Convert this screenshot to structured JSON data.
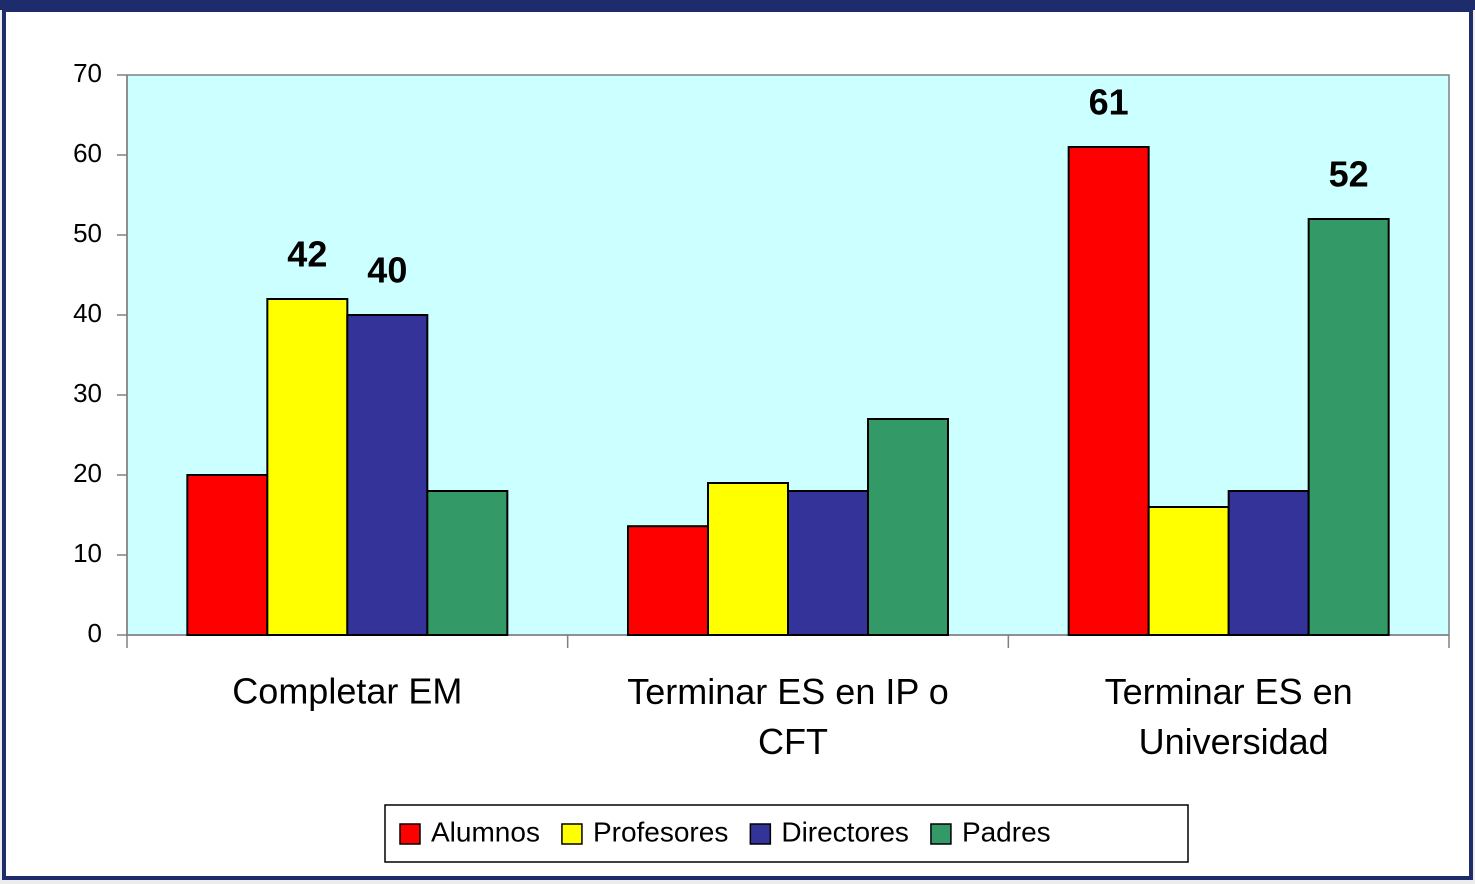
{
  "chart_data": {
    "type": "bar",
    "categories": [
      "Completar EM",
      "Terminar ES en IP o CFT",
      "Terminar ES en Universidad"
    ],
    "series": [
      {
        "name": "Alumnos",
        "color": "#ff0000",
        "values": [
          20,
          13.6,
          61
        ],
        "value_labels": [
          null,
          null,
          "61"
        ]
      },
      {
        "name": "Profesores",
        "color": "#ffff00",
        "values": [
          42,
          19,
          16
        ],
        "value_labels": [
          "42",
          null,
          null
        ]
      },
      {
        "name": "Directores",
        "color": "#333399",
        "values": [
          40,
          18,
          18
        ],
        "value_labels": [
          "40",
          null,
          null
        ]
      },
      {
        "name": "Padres",
        "color": "#339966",
        "values": [
          18,
          27,
          52
        ],
        "value_labels": [
          null,
          null,
          "52"
        ]
      }
    ],
    "ylim": [
      0,
      70
    ],
    "yticks": [
      0,
      10,
      20,
      30,
      40,
      50,
      60,
      70
    ],
    "legend": "bottom",
    "plot_background": "#ccffff"
  }
}
